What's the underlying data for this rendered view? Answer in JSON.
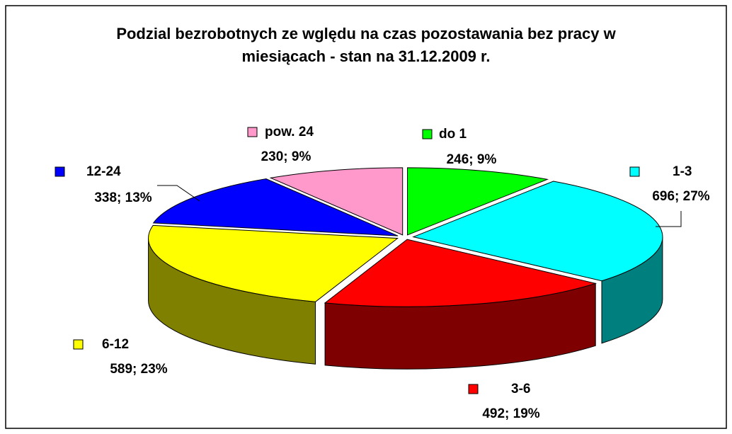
{
  "chart_data": {
    "type": "pie",
    "title": "Podzial bezrobotnych ze wględu na czas pozostawania bez pracy w miesiącach - stan na 31.12.2009 r.",
    "categories": [
      "do 1",
      "1-3",
      "3-6",
      "6-12",
      "12-24",
      "pow. 24"
    ],
    "values": [
      246,
      696,
      492,
      589,
      338,
      230
    ],
    "value_labels": [
      "246;  9%",
      "696;  27%",
      "492;  19%",
      "589;  23%",
      "338; 13%",
      "230; 9%"
    ],
    "colors": [
      "#00ff00",
      "#00ffff",
      "#ff0000",
      "#ffff00",
      "#0000ff",
      "#ff99cc"
    ]
  }
}
